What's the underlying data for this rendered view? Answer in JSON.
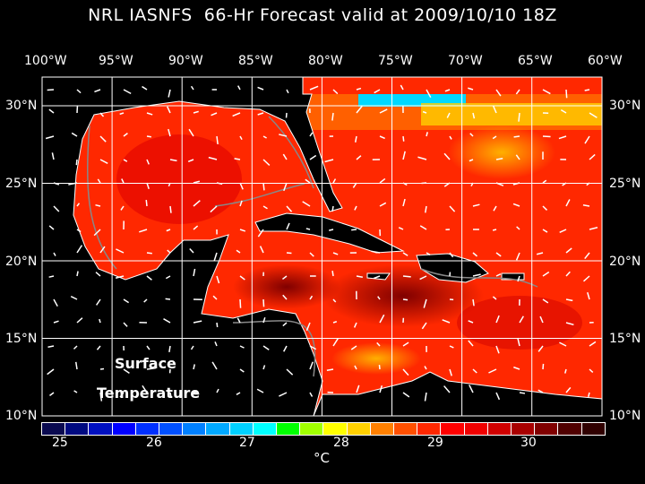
{
  "title": "NRL IASNFS  66-Hr Forecast valid at 2009/10/10 18Z",
  "lon_labels": [
    "100°W",
    "95°W",
    "90°W",
    "85°W",
    "80°W",
    "75°W",
    "70°W",
    "65°W",
    "60°W"
  ],
  "lat_labels": [
    "30°N",
    "25°N",
    "20°N",
    "15°N",
    "10°N"
  ],
  "map_label": {
    "line1": "Surface",
    "line2": "Temperature"
  },
  "colorbar": {
    "ticks": [
      "25",
      "26",
      "27",
      "28",
      "29",
      "30"
    ],
    "unit": "°C",
    "range": [
      25,
      30.75
    ],
    "colors": [
      "#0a0a50",
      "#000a80",
      "#0010c0",
      "#0000ff",
      "#0030ff",
      "#0050ff",
      "#0080ff",
      "#00a8ff",
      "#00d0ff",
      "#00ffff",
      "#00ff00",
      "#a0ff00",
      "#ffff00",
      "#ffd000",
      "#ff8000",
      "#ff5000",
      "#ff2800",
      "#ff0000",
      "#f00000",
      "#d00000",
      "#a80000",
      "#800000",
      "#500000",
      "#300000"
    ]
  }
}
